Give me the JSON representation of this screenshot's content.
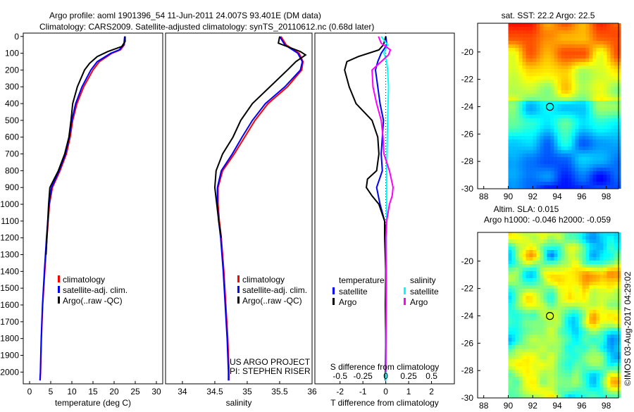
{
  "title_line1": "Argo profile: aoml 1901396_54 11-Jun-2011 24.007S 93.401E (DM data)",
  "title_line2": "Climatology: CARS2009. Satellite-adjusted climatology: synTS_20110612.nc (0.68d later)",
  "credit_line1": "US ARGO PROJECT",
  "credit_line2": "PI: STEPHEN RISER",
  "timestamp": "©IMOS 03-Aug-2017 04:29:02",
  "colors": {
    "climatology": "#ff0000",
    "satellite": "#0000ff",
    "argo": "#000000",
    "s_satellite": "#00ffff",
    "s_argo": "#ff00ff"
  },
  "chart_data": [
    {
      "type": "line",
      "id": "temperature",
      "xlabel": "temperature (deg C)",
      "ylabel": "",
      "xlim": [
        -1.5,
        31.5
      ],
      "ylim": [
        2070,
        -20
      ],
      "xticks": [
        0,
        5,
        10,
        15,
        20,
        25,
        30
      ],
      "yticks": [
        0,
        100,
        200,
        300,
        400,
        500,
        600,
        700,
        800,
        900,
        1000,
        1100,
        1200,
        1300,
        1400,
        1500,
        1600,
        1700,
        1800,
        1900,
        2000
      ],
      "legend": [
        "climatology",
        "satellite-adj. clim.",
        "Argo(..raw -QC)"
      ],
      "legend_position": "bottom-center",
      "series": [
        {
          "name": "climatology",
          "color": "#ff0000",
          "depth": [
            0,
            50,
            80,
            100,
            150,
            200,
            300,
            400,
            500,
            600,
            700,
            800,
            900,
            1000,
            1200,
            1400,
            1600,
            1800,
            2000,
            2050
          ],
          "values": [
            22.6,
            22.4,
            21.5,
            19.5,
            16.5,
            15,
            12.8,
            11.2,
            10.2,
            9.6,
            8.7,
            7.2,
            5.4,
            4.7,
            4.1,
            3.6,
            3.1,
            2.8,
            2.6,
            2.5
          ]
        },
        {
          "name": "satellite-adj. clim.",
          "color": "#0000ff",
          "depth": [
            0,
            50,
            80,
            100,
            150,
            200,
            300,
            400,
            500,
            600,
            700,
            800,
            900,
            1000,
            1200,
            1400,
            1600,
            1800,
            2000,
            2050
          ],
          "values": [
            22.5,
            22.3,
            21.2,
            19.2,
            16,
            14.5,
            12.4,
            10.9,
            10,
            9.4,
            8.5,
            7,
            5.2,
            4.6,
            4,
            3.5,
            3.05,
            2.75,
            2.55,
            2.45
          ]
        },
        {
          "name": "Argo(..raw -QC)",
          "color": "#000000",
          "depth": [
            0,
            30,
            60,
            90,
            120,
            160,
            200,
            300,
            400,
            500,
            600,
            700,
            800,
            900,
            1000,
            1100,
            1200,
            1300
          ],
          "values": [
            22.6,
            22.6,
            21.8,
            18.5,
            16,
            14.2,
            13,
            11.3,
            10.2,
            9.8,
            9.3,
            8.3,
            6.8,
            4.8,
            4.5,
            4.3,
            4.1,
            3.9
          ]
        }
      ]
    },
    {
      "type": "line",
      "id": "salinity",
      "xlabel": "salinity",
      "ylabel": "",
      "xlim": [
        33.74,
        36.0
      ],
      "ylim": [
        2070,
        -20
      ],
      "xticks": [
        34,
        34.5,
        35,
        35.5,
        36
      ],
      "legend": [
        "climatology",
        "satellite-adj. clim.",
        "Argo(..raw -QC)"
      ],
      "legend_position": "bottom-right",
      "series": [
        {
          "name": "climatology",
          "color": "#ff0000",
          "depth": [
            0,
            50,
            100,
            150,
            200,
            300,
            400,
            500,
            600,
            700,
            800,
            900,
            1000,
            1100,
            1200,
            1400,
            1600,
            1800,
            2000,
            2050
          ],
          "values": [
            35.52,
            35.6,
            35.8,
            35.86,
            35.84,
            35.62,
            35.32,
            35.12,
            34.96,
            34.8,
            34.62,
            34.55,
            34.55,
            34.57,
            34.6,
            34.64,
            34.67,
            34.7,
            34.72,
            34.72
          ]
        },
        {
          "name": "satellite-adj. clim.",
          "color": "#0000ff",
          "depth": [
            0,
            50,
            100,
            150,
            200,
            300,
            400,
            500,
            600,
            700,
            800,
            900,
            1000,
            1100,
            1200,
            1400,
            1600,
            1800,
            2000,
            2050
          ],
          "values": [
            35.5,
            35.58,
            35.78,
            35.85,
            35.82,
            35.58,
            35.28,
            35.08,
            34.92,
            34.77,
            34.6,
            34.54,
            34.54,
            34.56,
            34.59,
            34.63,
            34.66,
            34.69,
            34.71,
            34.71
          ]
        },
        {
          "name": "Argo(..raw -QC)",
          "color": "#000000",
          "depth": [
            0,
            40,
            90,
            110,
            150,
            200,
            300,
            400,
            500,
            600,
            700,
            800,
            900,
            1000,
            1100,
            1200
          ],
          "values": [
            35.5,
            35.48,
            35.82,
            35.9,
            35.75,
            35.62,
            35.35,
            35.08,
            34.9,
            34.78,
            34.62,
            34.52,
            34.5,
            34.53,
            34.56,
            34.6
          ]
        }
      ]
    },
    {
      "type": "line",
      "id": "differences",
      "xlabel": "T difference from climatology",
      "xlabel2": "S difference from climatology",
      "xlim": [
        -3.1,
        3.0
      ],
      "ylim": [
        2070,
        -20
      ],
      "xticks": [
        -2,
        -1,
        0,
        1,
        2
      ],
      "xticks_s": [
        -0.5,
        -0.25,
        0,
        0.25,
        0.5
      ],
      "legend_t_title": "temperature",
      "legend_s_title": "salinity",
      "legend_position": "bottom-center",
      "series": [
        {
          "name": "satellite",
          "kind": "T",
          "color": "#0000ff",
          "depth": [
            0,
            50,
            100,
            150,
            200,
            300,
            400,
            500,
            600,
            700,
            800,
            900,
            1000,
            1100,
            1200,
            1500,
            2000,
            2050
          ],
          "values": [
            0,
            0.05,
            -0.2,
            -0.35,
            -0.45,
            -0.35,
            -0.25,
            -0.1,
            -0.15,
            -0.2,
            -0.15,
            -0.4,
            -0.25,
            -0.05,
            0,
            0,
            0,
            0
          ]
        },
        {
          "name": "Argo",
          "kind": "T",
          "color": "#000000",
          "depth": [
            0,
            50,
            80,
            120,
            150,
            200,
            300,
            400,
            500,
            600,
            700,
            800,
            850,
            900,
            950,
            1000,
            1100,
            1200,
            1400,
            1600,
            1800,
            2000,
            2050
          ],
          "values": [
            0,
            -0.1,
            -0.3,
            -1.2,
            -1.7,
            -1.8,
            -1.6,
            -1.3,
            -0.6,
            -0.35,
            -0.3,
            -0.4,
            -0.8,
            -0.85,
            -0.6,
            -0.3,
            -0.05,
            -0.05,
            0,
            -0.02,
            0,
            -0.02,
            -0.02
          ]
        },
        {
          "name": "satellite",
          "kind": "S",
          "color": "#00ffff",
          "depth": [
            0,
            50,
            100,
            150,
            200,
            300,
            500,
            800,
            1000,
            1500,
            2000,
            2050
          ],
          "values": [
            -0.05,
            0.02,
            -0.02,
            0.01,
            0.02,
            0.03,
            0.02,
            0.01,
            0.01,
            0.005,
            0,
            0
          ]
        },
        {
          "name": "Argo",
          "kind": "S",
          "color": "#ff00ff",
          "depth": [
            0,
            40,
            80,
            110,
            150,
            200,
            300,
            400,
            500,
            600,
            700,
            800,
            900,
            950,
            1000,
            1100,
            1200,
            1500,
            2000
          ],
          "values": [
            -0.08,
            -0.05,
            0.05,
            0.03,
            -0.05,
            -0.15,
            -0.14,
            -0.1,
            -0.05,
            -0.03,
            -0.02,
            0.04,
            0.08,
            0.07,
            0.04,
            0.01,
            0,
            0.005,
            0
          ]
        }
      ]
    },
    {
      "type": "heatmap",
      "id": "sst_map",
      "title": "sat. SST: 22.2 Argo: 22.5",
      "xlim": [
        87.5,
        99
      ],
      "ylim": [
        -30,
        -17.9
      ],
      "xticks": [
        88,
        90,
        92,
        94,
        96,
        98
      ],
      "yticks": [
        -20,
        -22,
        -24,
        -26,
        -28,
        -30
      ],
      "data_lon_start": 90,
      "argo_position": {
        "lon": 93.401,
        "lat": -24.007
      }
    },
    {
      "type": "heatmap",
      "id": "sla_map",
      "title": "Altim. SLA: 0.015",
      "subtitle": "Argo h1000: -0.046 h2000: -0.059",
      "xlim": [
        87.5,
        99
      ],
      "ylim": [
        -30,
        -17.9
      ],
      "xticks": [
        88,
        90,
        92,
        94,
        96,
        98
      ],
      "yticks": [
        -20,
        -22,
        -24,
        -26,
        -28,
        -30
      ],
      "data_lon_start": 90,
      "argo_position": {
        "lon": 93.401,
        "lat": -24.007
      }
    }
  ]
}
